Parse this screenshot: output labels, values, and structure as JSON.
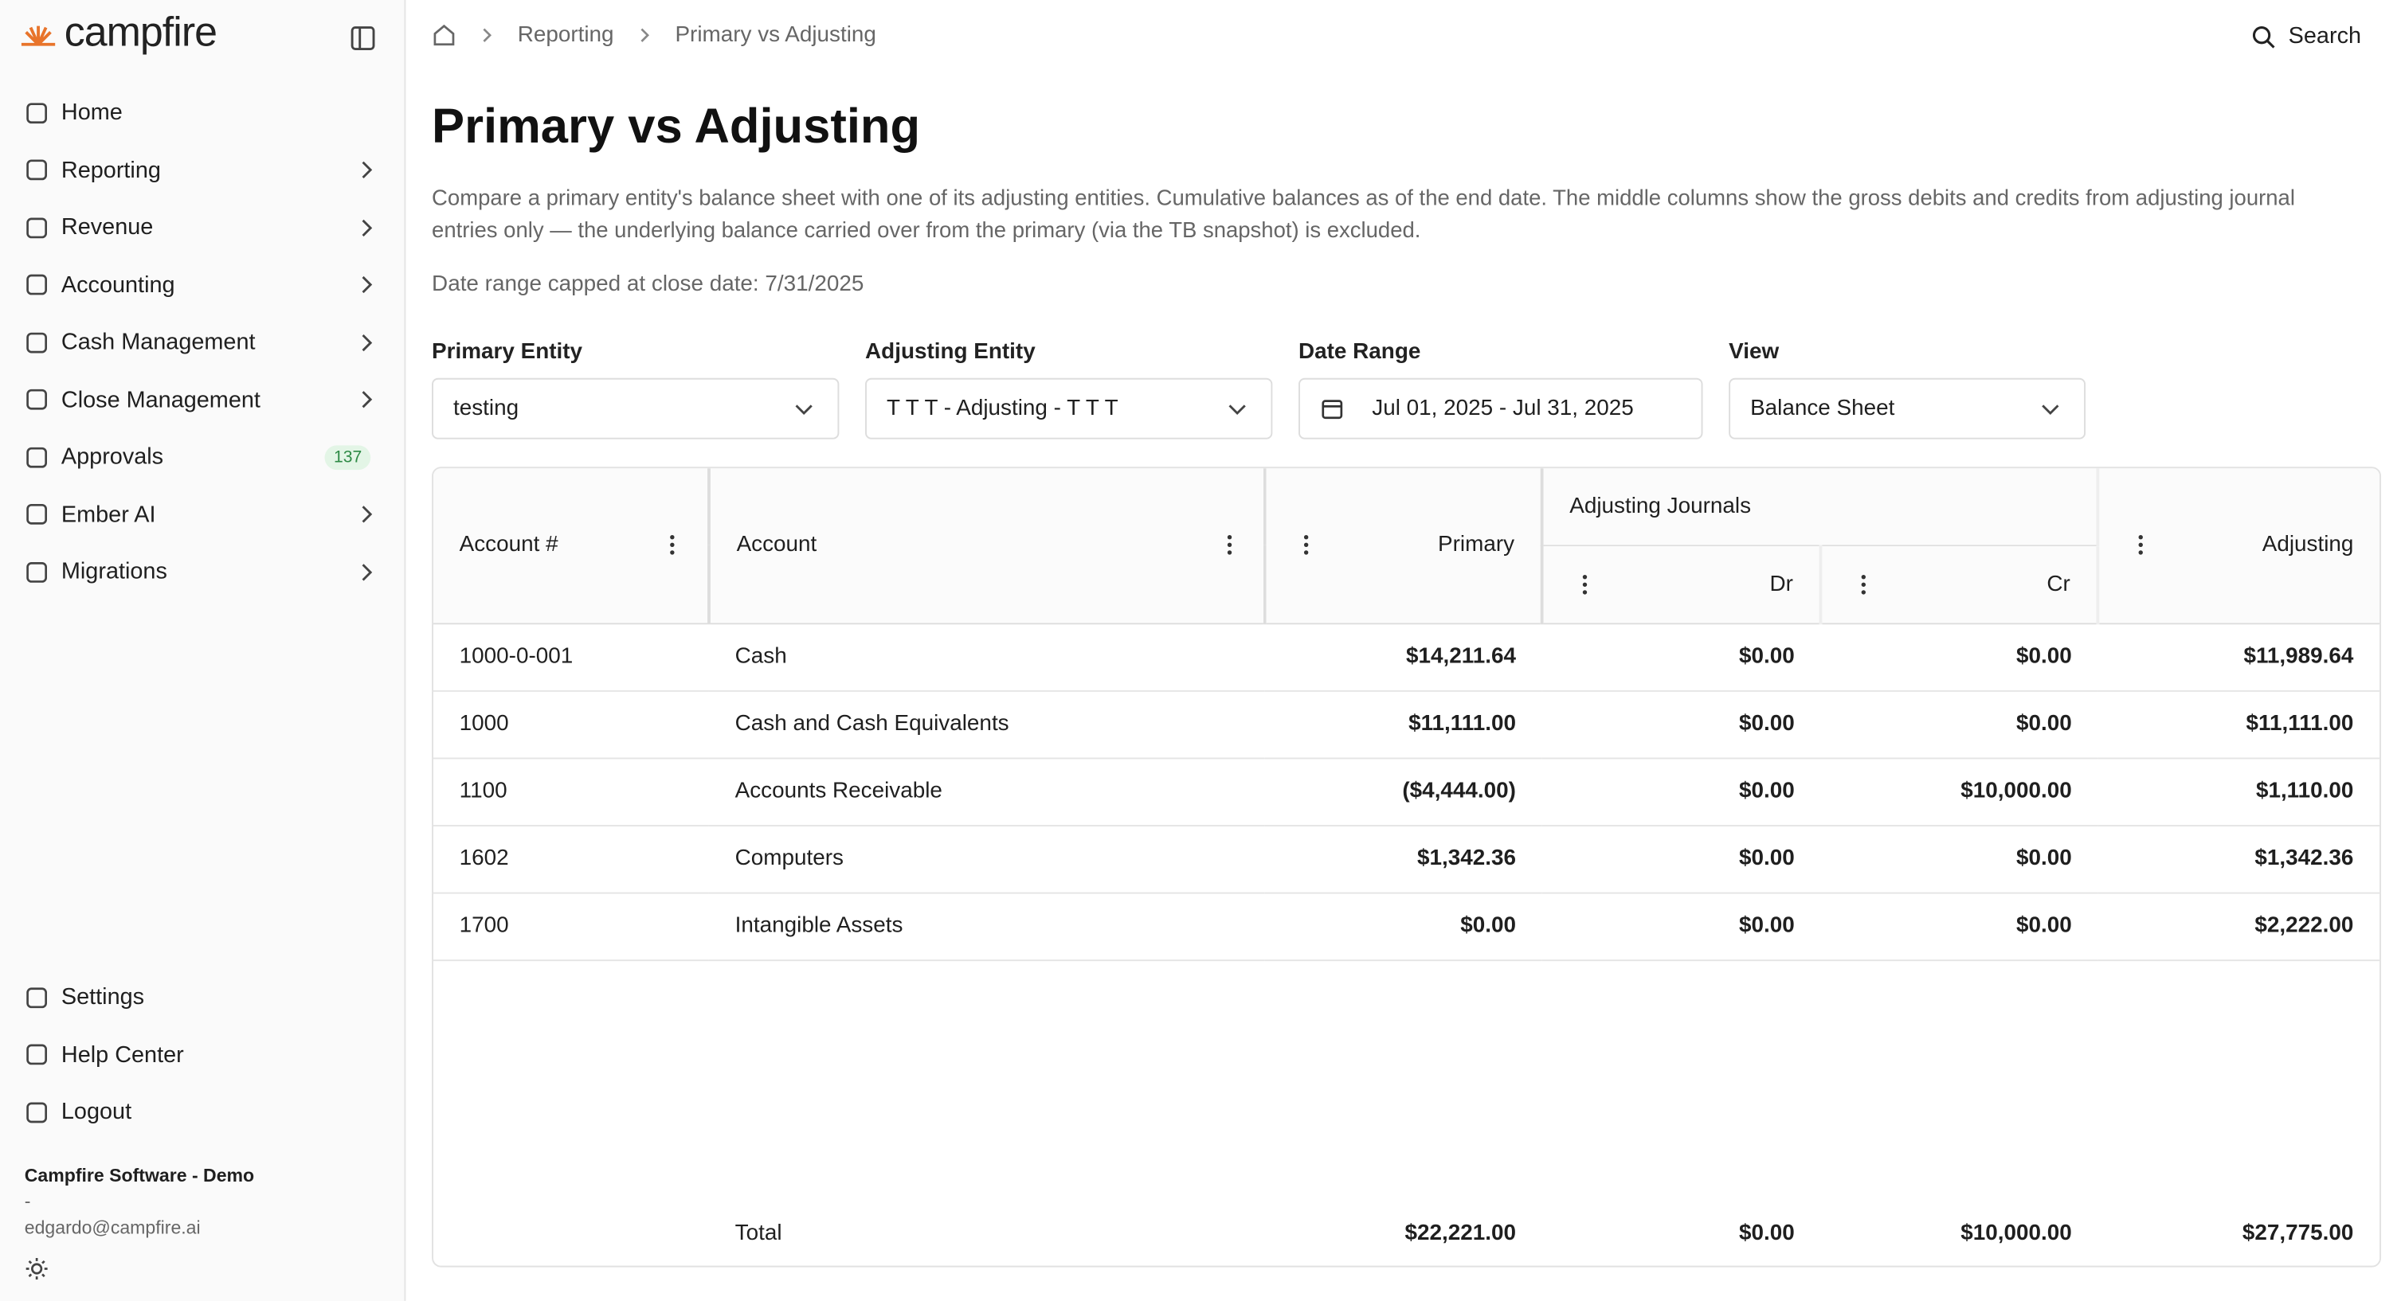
{
  "sidebar": {
    "brand": "campfire",
    "nav": [
      {
        "label": "Home",
        "submenu": false
      },
      {
        "label": "Reporting",
        "submenu": true
      },
      {
        "label": "Revenue",
        "submenu": true
      },
      {
        "label": "Accounting",
        "submenu": true
      },
      {
        "label": "Cash Management",
        "submenu": true
      },
      {
        "label": "Close Management",
        "submenu": true
      },
      {
        "label": "Approvals",
        "submenu": false,
        "badge": 137
      },
      {
        "label": "Ember AI",
        "submenu": true
      },
      {
        "label": "Migrations",
        "submenu": true
      }
    ],
    "footer_nav": [
      "Settings",
      "Help Center",
      "Logout"
    ],
    "org": "Campfire Software - Demo",
    "org_sub": "-",
    "email": "edgardo@campfire.ai"
  },
  "breadcrumb": [
    "Reporting",
    "Primary vs Adjusting"
  ],
  "search": "Search",
  "header": {
    "title": "Primary vs Adjusting",
    "description": "Compare a primary entity's balance sheet with one of its adjusting entities. Cumulative balances as of the end date. The middle columns show the gross debits and credits from adjusting journal entries only — the underlying balance carried over from the primary (via the TB snapshot) is excluded.",
    "note": "Date range capped at close date: 7/31/2025"
  },
  "filters": [
    {
      "label": "Primary Entity",
      "value": "testing"
    },
    {
      "label": "Adjusting Entity",
      "value": "T T T - Adjusting - T T T"
    },
    {
      "label": "Date Range",
      "value": "Jul 01, 2025 - Jul 31, 2025"
    },
    {
      "label": "View",
      "value": "Balance Sheet"
    }
  ],
  "table": {
    "columns": {
      "account_no": "Account #",
      "account": "Account",
      "primary": "Primary",
      "group": "Adjusting Journals",
      "dr": "Dr",
      "cr": "Cr",
      "adjusting": "Adjusting"
    },
    "rows": [
      [
        "1000-0-001",
        "Cash",
        "$14,211.64",
        "$0.00",
        "$0.00",
        "$11,989.64"
      ],
      [
        "1000",
        "Cash and Cash Equivalents",
        "$11,111.00",
        "$0.00",
        "$0.00",
        "$11,111.00"
      ],
      [
        "1100",
        "Accounts Receivable",
        "($4,444.00)",
        "$0.00",
        "$10,000.00",
        "$1,110.00"
      ],
      [
        "1602",
        "Computers",
        "$1,342.36",
        "$0.00",
        "$0.00",
        "$1,342.36"
      ],
      [
        "1700",
        "Intangible Assets",
        "$0.00",
        "$0.00",
        "$0.00",
        "$2,222.00"
      ]
    ],
    "total": [
      "Total",
      "$22,221.00",
      "$0.00",
      "$10,000.00",
      "$27,775.00"
    ]
  }
}
